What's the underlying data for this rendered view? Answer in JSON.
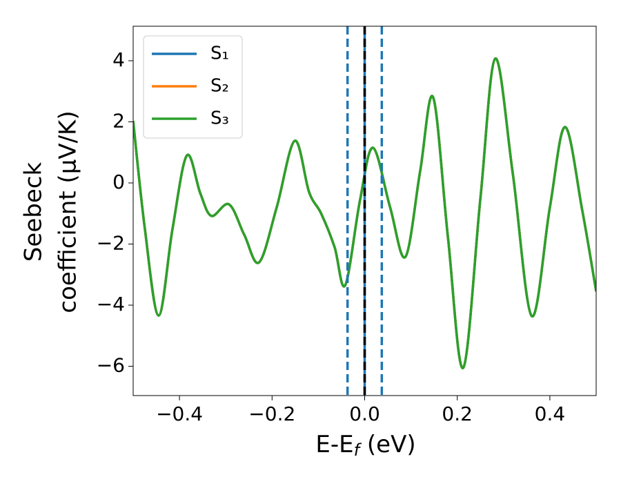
{
  "chart_data": {
    "type": "line",
    "xlabel": [
      "E-E",
      "f",
      " (eV)"
    ],
    "ylabel": [
      "Seebeck",
      "coefficient  (μV/K)"
    ],
    "x": [
      -0.5,
      -0.475,
      -0.445,
      -0.415,
      -0.384,
      -0.355,
      -0.331,
      -0.293,
      -0.26,
      -0.228,
      -0.19,
      -0.151,
      -0.12,
      -0.094,
      -0.065,
      -0.042,
      -0.01,
      0.018,
      0.055,
      0.088,
      0.12,
      0.148,
      0.18,
      0.213,
      0.25,
      0.282,
      0.32,
      0.361,
      0.4,
      0.433,
      0.47,
      0.5
    ],
    "series": [
      {
        "name": "S₁",
        "color": "#1f77b4",
        "values": [
          2.03,
          -1.47,
          -4.34,
          -1.5,
          0.9,
          -0.34,
          -1.08,
          -0.7,
          -1.7,
          -2.6,
          -0.8,
          1.38,
          -0.3,
          -1.0,
          -2.1,
          -3.35,
          -0.56,
          1.15,
          -0.8,
          -2.42,
          0.4,
          2.8,
          -1.8,
          -6.05,
          -0.5,
          4.07,
          0.3,
          -4.36,
          -0.8,
          1.83,
          -0.9,
          -3.55
        ]
      },
      {
        "name": "S₂",
        "color": "#ff7f0e",
        "values": [
          2.03,
          -1.47,
          -4.34,
          -1.5,
          0.9,
          -0.34,
          -1.08,
          -0.7,
          -1.7,
          -2.6,
          -0.8,
          1.38,
          -0.3,
          -1.0,
          -2.1,
          -3.35,
          -0.56,
          1.15,
          -0.8,
          -2.42,
          0.4,
          2.8,
          -1.8,
          -6.05,
          -0.5,
          4.07,
          0.3,
          -4.36,
          -0.8,
          1.83,
          -0.9,
          -3.55
        ]
      },
      {
        "name": "S₃",
        "color": "#2ca02c",
        "values": [
          2.03,
          -1.47,
          -4.34,
          -1.5,
          0.9,
          -0.34,
          -1.08,
          -0.7,
          -1.7,
          -2.6,
          -0.8,
          1.38,
          -0.3,
          -1.0,
          -2.1,
          -3.35,
          -0.56,
          1.15,
          -0.8,
          -2.42,
          0.4,
          2.8,
          -1.8,
          -6.05,
          -0.5,
          4.07,
          0.3,
          -4.36,
          -0.8,
          1.83,
          -0.9,
          -3.55
        ]
      }
    ],
    "vlines": [
      {
        "x": -0.037,
        "color": "#1f77b4",
        "style": "dashed"
      },
      {
        "x": 0.037,
        "color": "#1f77b4",
        "style": "dashed"
      },
      {
        "x": 0,
        "color": "#1f77b4",
        "style": "solid"
      },
      {
        "x": 0,
        "color": "#000000",
        "style": "dashed"
      }
    ],
    "xlim": [
      -0.5,
      0.5
    ],
    "xticks": [
      {
        "value": -0.4,
        "label": "−0.4"
      },
      {
        "value": -0.2,
        "label": "−0.2"
      },
      {
        "value": 0,
        "label": "0.0"
      },
      0.2,
      0.4
    ],
    "ylim": [
      -6.96,
      5.13
    ],
    "yticks": [
      {
        "value": -6,
        "label": "−6"
      },
      {
        "value": -4,
        "label": "−4"
      },
      {
        "value": -2,
        "label": "−2"
      },
      0,
      2,
      4
    ],
    "legend": "upper left",
    "grid": false
  }
}
